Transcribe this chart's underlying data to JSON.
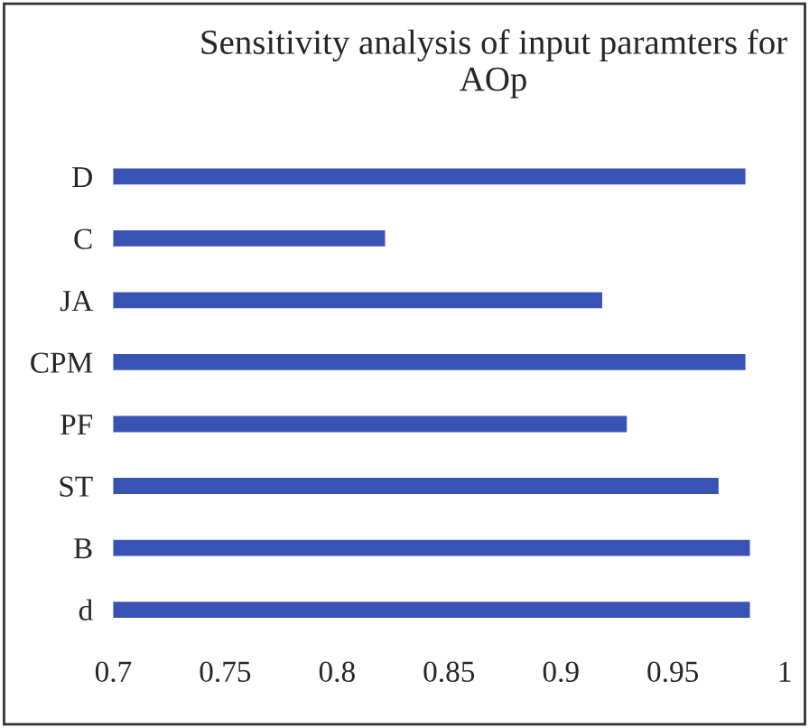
{
  "chart_data": {
    "type": "bar",
    "orientation": "horizontal",
    "title": "Sensitivity analysis of input paramters for AOp",
    "categories": [
      "D",
      "C",
      "JA",
      "CPM",
      "PF",
      "ST",
      "B",
      "d"
    ],
    "values": [
      0.983,
      0.822,
      0.919,
      0.983,
      0.93,
      0.971,
      0.985,
      0.985
    ],
    "color": "#3953b4",
    "xlim": [
      0.7,
      1
    ],
    "xticks": [
      0.7,
      0.75,
      0.8,
      0.85,
      0.9,
      0.95,
      1
    ],
    "grid": false
  }
}
